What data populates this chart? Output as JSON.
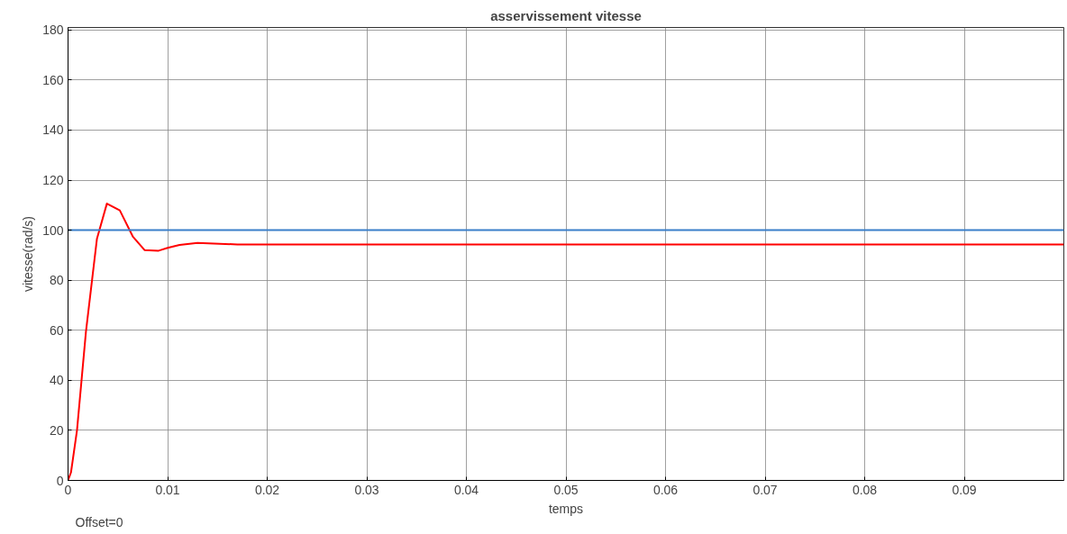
{
  "chart_data": {
    "type": "line",
    "title": "asservissement vitesse",
    "xlabel": "temps",
    "ylabel": "vitesse(rad/s)",
    "annotations": [
      "Offset=0"
    ],
    "series": [
      {
        "color": "#ff0000",
        "x": [
          0,
          0.0003,
          0.0009,
          0.0018,
          0.0029,
          0.0039,
          0.0052,
          0.0065,
          0.0077,
          0.0091,
          0.01,
          0.0112,
          0.013,
          0.017,
          0.0206,
          0.1
        ],
        "values": [
          0,
          3.3,
          20,
          59.5,
          96.5,
          110.6,
          107.9,
          97.5,
          92,
          91.8,
          92.9,
          94.1,
          94.9,
          94.3,
          94.3,
          94.3
        ]
      },
      {
        "color": "#3a7fc9",
        "x": [
          0,
          0.1
        ],
        "values": [
          100,
          100
        ]
      }
    ],
    "xlim": [
      0,
      0.1
    ],
    "ylim": [
      0,
      181
    ],
    "xticks": [
      0,
      0.01,
      0.02,
      0.03,
      0.04,
      0.05,
      0.06,
      0.07,
      0.08,
      0.09
    ],
    "yticks": [
      0,
      20,
      40,
      60,
      80,
      100,
      120,
      140,
      160,
      180
    ],
    "grid": true
  }
}
